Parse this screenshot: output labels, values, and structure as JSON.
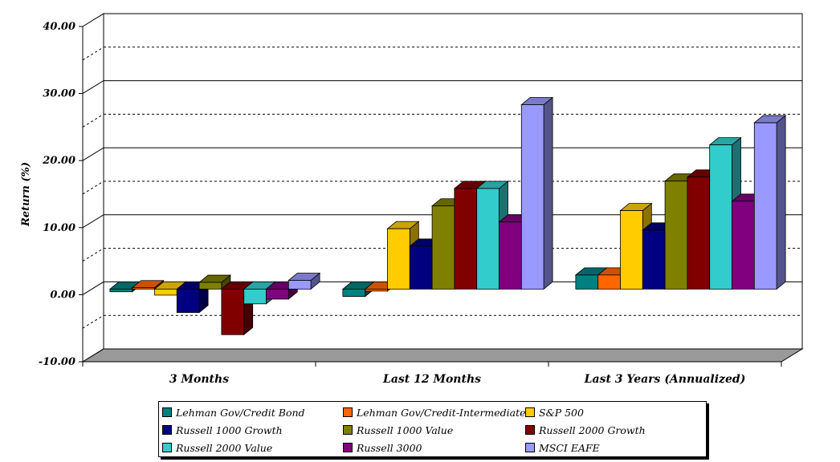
{
  "chart_data": {
    "type": "bar",
    "title": "",
    "xlabel": "",
    "ylabel": "Return (%)",
    "ylim": [
      -10,
      40
    ],
    "yticks": [
      "-10.00",
      "0.00",
      "10.00",
      "20.00",
      "30.00",
      "40.00"
    ],
    "grid": true,
    "legend_position": "bottom",
    "categories": [
      "3 Months",
      "Last 12 Months",
      "Last 3 Years (Annualized)"
    ],
    "series": [
      {
        "name": "Lehman Gov/Credit Bond",
        "color": "#008080",
        "values": [
          -0.4,
          -1.1,
          2.1
        ]
      },
      {
        "name": "Lehman Gov/Credit-Intermediate",
        "color": "#FF6600",
        "values": [
          0.2,
          -0.3,
          2.1
        ]
      },
      {
        "name": "S&P 500",
        "color": "#FFCC00",
        "values": [
          -0.9,
          9.0,
          11.7
        ]
      },
      {
        "name": "Russell 1000 Growth",
        "color": "#000080",
        "values": [
          -3.5,
          6.4,
          8.8
        ]
      },
      {
        "name": "Russell 1000 Value",
        "color": "#808000",
        "values": [
          1.0,
          12.4,
          16.1
        ]
      },
      {
        "name": "Russell 2000 Growth",
        "color": "#800000",
        "values": [
          -6.8,
          15.0,
          16.7
        ]
      },
      {
        "name": "Russell 2000 Value",
        "color": "#33CCCC",
        "values": [
          -2.2,
          15.0,
          21.5
        ]
      },
      {
        "name": "Russell 3000",
        "color": "#800080",
        "values": [
          -1.5,
          10.0,
          13.1
        ]
      },
      {
        "name": "MSCI EAFE",
        "color": "#9999FF",
        "values": [
          1.3,
          27.5,
          24.8
        ]
      }
    ]
  }
}
